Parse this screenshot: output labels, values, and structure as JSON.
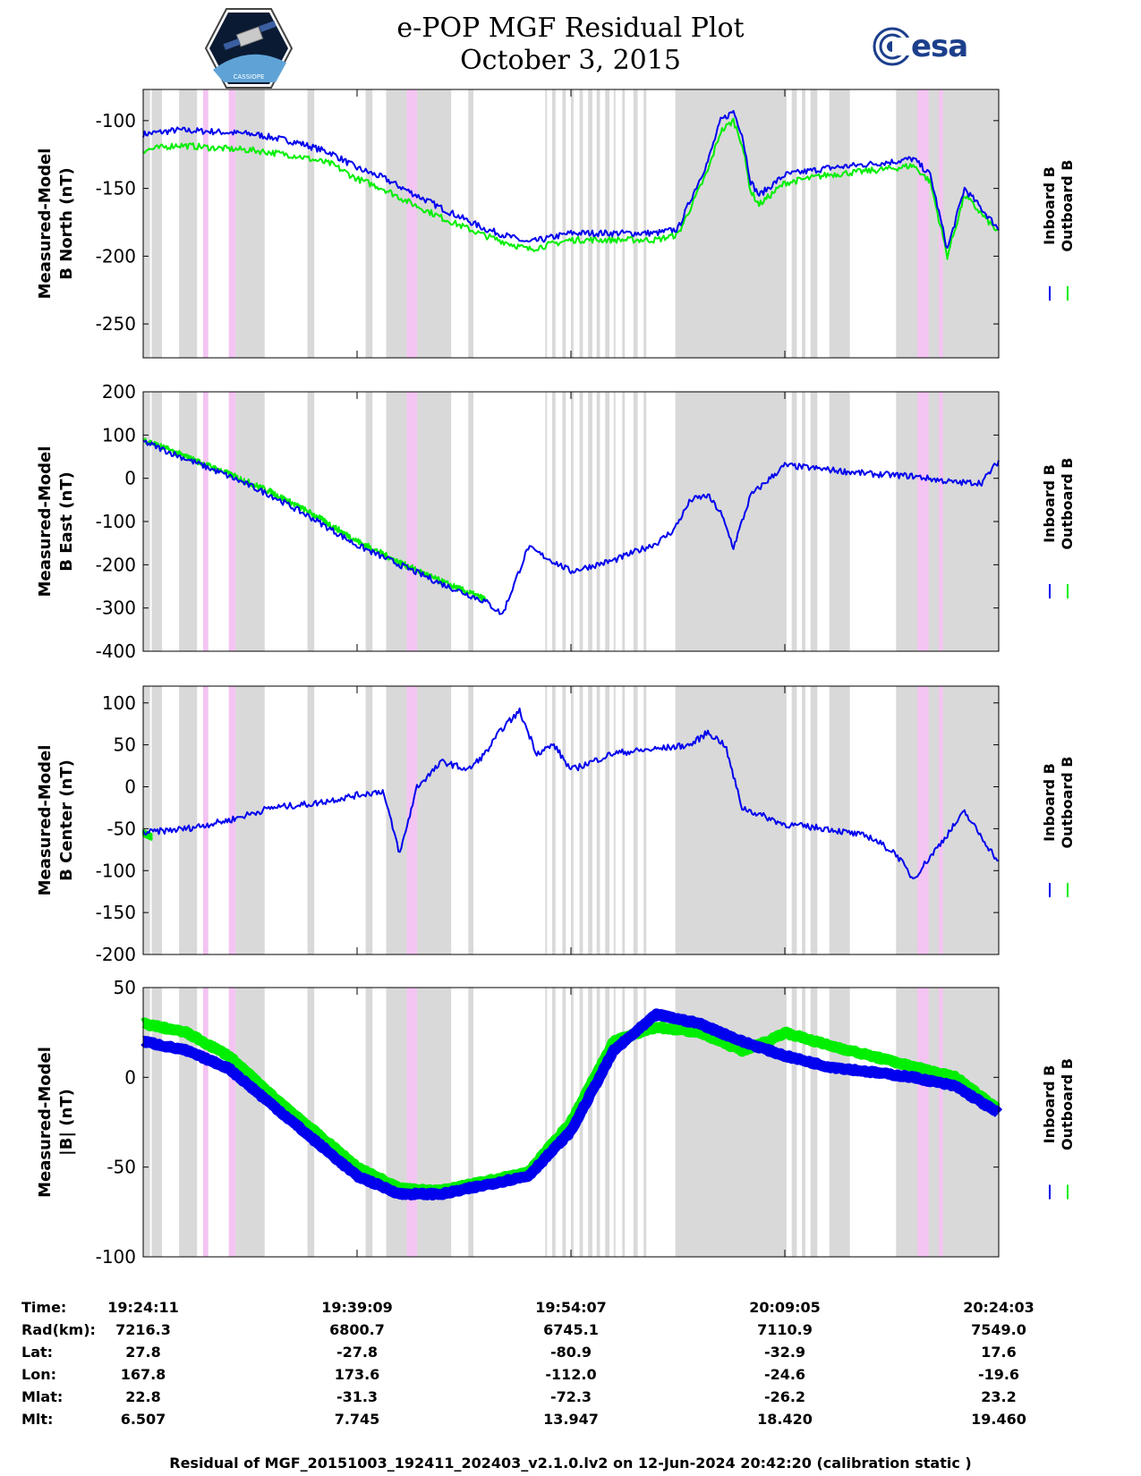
{
  "title": {
    "line1": "e-POP MGF Residual Plot",
    "line2": "October 3, 2015"
  },
  "logos": {
    "left": "cassiope-mission-patch",
    "right": "esa"
  },
  "esa_text": "esa",
  "colors": {
    "inboard": "#0000ee",
    "outboard": "#00ee00",
    "shade_gray": "#d9d9d9",
    "shade_pink": "#f4c4f2"
  },
  "legend": {
    "inboard": "Inboard B",
    "outboard": "Outboard B"
  },
  "chart_data": [
    {
      "type": "line",
      "ylabel": [
        "Measured-Model",
        "B North (nT)"
      ],
      "ylim": [
        -275,
        -77
      ],
      "yticks": [
        -100,
        -150,
        -200,
        -250
      ],
      "series": [
        {
          "name": "Inboard B",
          "x": [
            0,
            0.04,
            0.08,
            0.13,
            0.18,
            0.22,
            0.25,
            0.28,
            0.31,
            0.35,
            0.4,
            0.45,
            0.5,
            0.55,
            0.6,
            0.625,
            0.64,
            0.66,
            0.675,
            0.69,
            0.7,
            0.71,
            0.72,
            0.75,
            0.8,
            0.85,
            0.88,
            0.9,
            0.92,
            0.94,
            0.96,
            1.0
          ],
          "values": [
            -110,
            -107,
            -108,
            -110,
            -116,
            -124,
            -135,
            -142,
            -152,
            -165,
            -180,
            -190,
            -183,
            -183,
            -183,
            -180,
            -158,
            -130,
            -100,
            -93,
            -110,
            -145,
            -155,
            -140,
            -135,
            -132,
            -130,
            -128,
            -140,
            -195,
            -150,
            -180
          ]
        },
        {
          "name": "Outboard B",
          "x": [
            0,
            0.04,
            0.08,
            0.13,
            0.18,
            0.22,
            0.25,
            0.28,
            0.31,
            0.35,
            0.4,
            0.45,
            0.5,
            0.55,
            0.6,
            0.625,
            0.64,
            0.66,
            0.675,
            0.69,
            0.7,
            0.71,
            0.72,
            0.75,
            0.8,
            0.85,
            0.88,
            0.9,
            0.92,
            0.94,
            0.96,
            1.0
          ],
          "values": [
            -122,
            -118,
            -120,
            -122,
            -126,
            -132,
            -143,
            -150,
            -160,
            -172,
            -185,
            -195,
            -188,
            -188,
            -188,
            -184,
            -164,
            -137,
            -108,
            -100,
            -117,
            -152,
            -162,
            -146,
            -140,
            -137,
            -135,
            -133,
            -145,
            -200,
            -155,
            -183
          ]
        }
      ]
    },
    {
      "type": "line",
      "ylabel": [
        "Measured-Model",
        "B East (nT)"
      ],
      "ylim": [
        -400,
        200
      ],
      "yticks": [
        200,
        100,
        0,
        -100,
        -200,
        -300,
        -400
      ],
      "series": [
        {
          "name": "Inboard B",
          "x": [
            0,
            0.05,
            0.1,
            0.15,
            0.2,
            0.25,
            0.3,
            0.35,
            0.4,
            0.42,
            0.45,
            0.5,
            0.55,
            0.6,
            0.62,
            0.64,
            0.66,
            0.675,
            0.69,
            0.7,
            0.71,
            0.73,
            0.75,
            0.8,
            0.85,
            0.9,
            0.95,
            0.98,
            1.0
          ],
          "values": [
            85,
            45,
            5,
            -40,
            -95,
            -155,
            -200,
            -245,
            -285,
            -315,
            -160,
            -215,
            -190,
            -150,
            -120,
            -50,
            -40,
            -80,
            -160,
            -100,
            -40,
            -5,
            30,
            20,
            10,
            5,
            -10,
            -10,
            40
          ]
        },
        {
          "name": "Outboard B",
          "x": [
            0,
            0.05,
            0.1,
            0.15,
            0.2,
            0.25,
            0.3,
            0.35,
            0.4
          ],
          "values": [
            90,
            50,
            10,
            -32,
            -85,
            -145,
            -195,
            -240,
            -280
          ]
        }
      ]
    },
    {
      "type": "line",
      "ylabel": [
        "Measured-Model",
        "B Center (nT)"
      ],
      "ylim": [
        -200,
        120
      ],
      "yticks": [
        100,
        50,
        0,
        -50,
        -100,
        -150,
        -200
      ],
      "series": [
        {
          "name": "Inboard B",
          "x": [
            0,
            0.05,
            0.1,
            0.15,
            0.2,
            0.25,
            0.28,
            0.3,
            0.32,
            0.35,
            0.38,
            0.4,
            0.42,
            0.44,
            0.46,
            0.48,
            0.5,
            0.55,
            0.6,
            0.64,
            0.66,
            0.68,
            0.7,
            0.75,
            0.8,
            0.85,
            0.88,
            0.9,
            0.93,
            0.96,
            1.0
          ],
          "values": [
            -55,
            -50,
            -40,
            -25,
            -20,
            -10,
            -5,
            -80,
            0,
            30,
            20,
            40,
            70,
            90,
            40,
            50,
            20,
            40,
            45,
            50,
            65,
            50,
            -25,
            -45,
            -50,
            -60,
            -80,
            -110,
            -70,
            -30,
            -90
          ]
        },
        {
          "name": "Outboard B",
          "x": [
            0,
            0.01
          ],
          "values": [
            -55,
            -60
          ]
        }
      ]
    },
    {
      "type": "line",
      "ylabel": [
        "Measured-Model",
        "|B| (nT)"
      ],
      "ylim": [
        -100,
        50
      ],
      "yticks": [
        50,
        0,
        -50,
        -100
      ],
      "series": [
        {
          "name": "Inboard B",
          "x": [
            0,
            0.05,
            0.1,
            0.15,
            0.2,
            0.25,
            0.3,
            0.35,
            0.4,
            0.45,
            0.5,
            0.55,
            0.6,
            0.65,
            0.7,
            0.75,
            0.8,
            0.85,
            0.9,
            0.95,
            1.0
          ],
          "values": [
            20,
            15,
            5,
            -15,
            -35,
            -55,
            -65,
            -65,
            -60,
            -55,
            -30,
            15,
            35,
            30,
            20,
            12,
            6,
            3,
            0,
            -5,
            -20
          ]
        },
        {
          "name": "Outboard B",
          "x": [
            0,
            0.05,
            0.1,
            0.15,
            0.2,
            0.25,
            0.3,
            0.35,
            0.4,
            0.45,
            0.5,
            0.55,
            0.6,
            0.65,
            0.7,
            0.73,
            0.75,
            0.8,
            0.85,
            0.9,
            0.95,
            1.0
          ],
          "values": [
            30,
            25,
            12,
            -10,
            -30,
            -50,
            -62,
            -63,
            -58,
            -53,
            -25,
            20,
            28,
            25,
            15,
            20,
            25,
            18,
            12,
            6,
            0,
            -18
          ]
        }
      ]
    }
  ],
  "info_table": {
    "row_labels": [
      "Time:",
      "Rad(km):",
      "Lat:",
      "Lon:",
      "Mlat:",
      "Mlt:"
    ],
    "columns": [
      [
        "19:24:11",
        "7216.3",
        "27.8",
        "167.8",
        "22.8",
        "6.507"
      ],
      [
        "19:39:09",
        "6800.7",
        "-27.8",
        "173.6",
        "-31.3",
        "7.745"
      ],
      [
        "19:54:07",
        "6745.1",
        "-80.9",
        "-112.0",
        "-72.3",
        "13.947"
      ],
      [
        "20:09:05",
        "7110.9",
        "-32.9",
        "-24.6",
        "-26.2",
        "18.420"
      ],
      [
        "20:24:03",
        "7549.0",
        "17.6",
        "-19.6",
        "23.2",
        "19.460"
      ]
    ]
  },
  "footer": "Residual of MGF_20151003_192411_202403_v2.1.0.lv2 on 12-Jun-2024 20:42:20 (calibration static )",
  "shading": {
    "gray": [
      [
        0.0,
        0.008
      ],
      [
        0.01,
        0.022
      ],
      [
        0.042,
        0.063
      ],
      [
        0.072,
        0.076
      ],
      [
        0.108,
        0.142
      ],
      [
        0.192,
        0.2
      ],
      [
        0.26,
        0.268
      ],
      [
        0.284,
        0.36
      ],
      [
        0.38,
        0.386
      ],
      [
        0.47,
        0.472
      ],
      [
        0.478,
        0.482
      ],
      [
        0.49,
        0.494
      ],
      [
        0.5,
        0.503
      ],
      [
        0.51,
        0.514
      ],
      [
        0.52,
        0.525
      ],
      [
        0.53,
        0.534
      ],
      [
        0.54,
        0.545
      ],
      [
        0.55,
        0.552
      ],
      [
        0.56,
        0.563
      ],
      [
        0.573,
        0.578
      ],
      [
        0.585,
        0.588
      ],
      [
        0.622,
        0.752
      ],
      [
        0.758,
        0.764
      ],
      [
        0.77,
        0.774
      ],
      [
        0.78,
        0.788
      ],
      [
        0.802,
        0.826
      ],
      [
        0.88,
        1.0
      ]
    ],
    "pink": [
      [
        0.07,
        0.076
      ],
      [
        0.1,
        0.108
      ],
      [
        0.308,
        0.32
      ],
      [
        0.905,
        0.918
      ],
      [
        0.93,
        0.935
      ]
    ]
  }
}
